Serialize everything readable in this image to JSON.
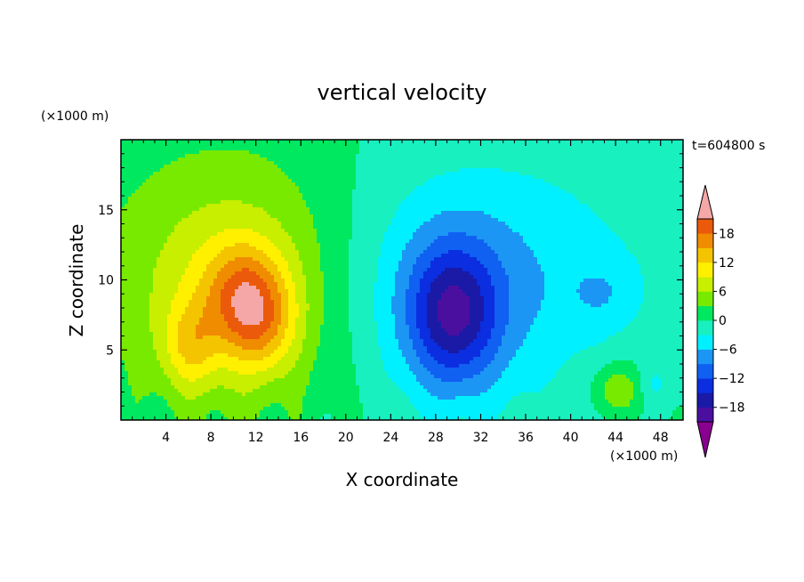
{
  "chart_data": {
    "type": "heatmap",
    "title": "vertical velocity",
    "xlabel": "X coordinate",
    "ylabel": "Z coordinate",
    "x_unit": "(×1000 m)",
    "y_unit": "(×1000 m)",
    "time_label": "t=604800 s",
    "xlim": [
      0,
      50
    ],
    "ylim": [
      0,
      20
    ],
    "x_ticks": [
      4,
      8,
      12,
      16,
      20,
      24,
      28,
      32,
      36,
      40,
      44,
      48
    ],
    "y_ticks": [
      5,
      10,
      15
    ],
    "colorbar": {
      "levels": [
        -21,
        -18,
        -15,
        -12,
        -9,
        -6,
        -3,
        0,
        3,
        6,
        9,
        12,
        15,
        18,
        21
      ],
      "tick_labels": [
        -18,
        -12,
        -6,
        0,
        6,
        12,
        18
      ],
      "colors": [
        "#8a008f",
        "#4b0fa0",
        "#1a1aa6",
        "#0a2ee0",
        "#1060f2",
        "#1c96f4",
        "#00f0ff",
        "#18f0c0",
        "#00e860",
        "#78ea00",
        "#c8ee00",
        "#fff000",
        "#f5c400",
        "#f08c00",
        "#eb5a0a",
        "#e61e1e",
        "#f5a7a7"
      ],
      "extend": "both"
    },
    "features": [
      {
        "x": 11,
        "z": 9,
        "sx": 2.6,
        "sz": 2.6,
        "w": 11
      },
      {
        "x": 12.5,
        "z": 6.5,
        "sx": 2.2,
        "sz": 2.4,
        "w": 7
      },
      {
        "x": 6.2,
        "z": 5.3,
        "sx": 1.8,
        "sz": 2.2,
        "w": 7
      },
      {
        "x": 10,
        "z": 9,
        "sx": 7.5,
        "sz": 6.5,
        "w": 7
      },
      {
        "x": 9,
        "z": 12,
        "sx": 9,
        "sz": 7,
        "w": 2
      },
      {
        "x": 29.5,
        "z": 7.5,
        "sx": 2.8,
        "sz": 3.5,
        "w": -13
      },
      {
        "x": 30,
        "z": 8.5,
        "sx": 8,
        "sz": 6,
        "w": -5.5
      },
      {
        "x": 36,
        "z": 12,
        "sx": 12,
        "sz": 6,
        "w": -2.5
      },
      {
        "x": 43,
        "z": 9,
        "sx": 2.2,
        "sz": 1.8,
        "w": -3
      },
      {
        "x": 44.2,
        "z": 2.2,
        "sx": 1.6,
        "sz": 1.3,
        "w": 6
      },
      {
        "x": 47.5,
        "z": 2.5,
        "sx": 1,
        "sz": 1,
        "w": -3
      }
    ]
  }
}
